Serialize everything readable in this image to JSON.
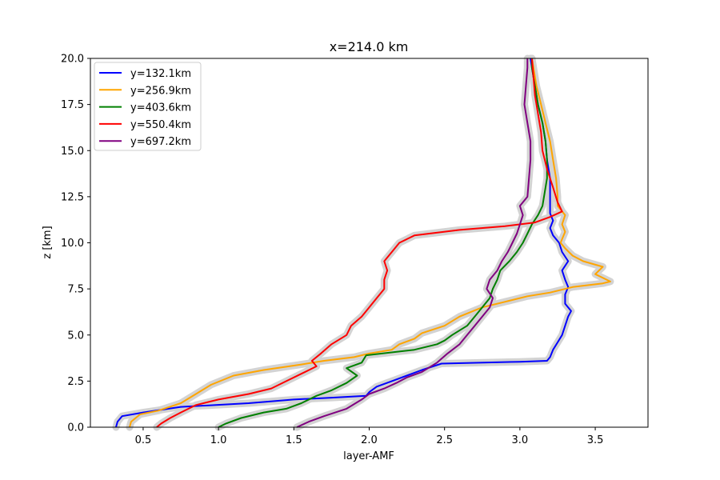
{
  "chart_data": {
    "type": "line",
    "title": "x=214.0 km",
    "xlabel": "layer-AMF",
    "ylabel": "z [km]",
    "xlim": [
      0.15,
      3.85
    ],
    "ylim": [
      0,
      20
    ],
    "xticks": [
      "0.5",
      "1.0",
      "1.5",
      "2.0",
      "2.5",
      "3.0",
      "3.5"
    ],
    "xtick_values": [
      0.5,
      1.0,
      1.5,
      2.0,
      2.5,
      3.0,
      3.5
    ],
    "yticks": [
      "0.0",
      "2.5",
      "5.0",
      "7.5",
      "10.0",
      "12.5",
      "15.0",
      "17.5",
      "20.0"
    ],
    "ytick_values": [
      0,
      2.5,
      5,
      7.5,
      10,
      12.5,
      15,
      17.5,
      20
    ],
    "grid": false,
    "legend_position": "top-left",
    "uncertainty_band_color": "#d3d3d3",
    "series": [
      {
        "name": "y=132.1km",
        "color": "#0000ff",
        "points": [
          [
            0.32,
            0
          ],
          [
            0.33,
            0.3
          ],
          [
            0.36,
            0.6
          ],
          [
            0.5,
            0.8
          ],
          [
            0.75,
            1.1
          ],
          [
            1.2,
            1.3
          ],
          [
            1.5,
            1.5
          ],
          [
            1.75,
            1.6
          ],
          [
            1.98,
            1.7
          ],
          [
            2.0,
            1.9
          ],
          [
            2.05,
            2.2
          ],
          [
            2.15,
            2.5
          ],
          [
            2.25,
            2.8
          ],
          [
            2.35,
            3.1
          ],
          [
            2.48,
            3.45
          ],
          [
            3.0,
            3.55
          ],
          [
            3.18,
            3.6
          ],
          [
            3.2,
            3.8
          ],
          [
            3.22,
            4.2
          ],
          [
            3.25,
            4.6
          ],
          [
            3.28,
            5.0
          ],
          [
            3.3,
            5.5
          ],
          [
            3.32,
            6.0
          ],
          [
            3.34,
            6.3
          ],
          [
            3.3,
            6.7
          ],
          [
            3.3,
            7.2
          ],
          [
            3.32,
            7.6
          ],
          [
            3.3,
            8.0
          ],
          [
            3.28,
            8.5
          ],
          [
            3.32,
            9.0
          ],
          [
            3.28,
            9.5
          ],
          [
            3.26,
            10.0
          ],
          [
            3.22,
            10.4
          ],
          [
            3.2,
            10.8
          ],
          [
            3.22,
            11.2
          ],
          [
            3.2,
            11.6
          ],
          [
            3.2,
            12.5
          ],
          [
            3.2,
            13.5
          ],
          [
            3.18,
            14.5
          ],
          [
            3.17,
            15.5
          ],
          [
            3.15,
            16.5
          ],
          [
            3.12,
            17.5
          ],
          [
            3.1,
            18.5
          ],
          [
            3.08,
            19.5
          ],
          [
            3.07,
            20.0
          ]
        ]
      },
      {
        "name": "y=256.9km",
        "color": "#ffa500",
        "points": [
          [
            0.41,
            0
          ],
          [
            0.42,
            0.3
          ],
          [
            0.48,
            0.7
          ],
          [
            0.6,
            0.9
          ],
          [
            0.75,
            1.3
          ],
          [
            0.85,
            1.8
          ],
          [
            0.95,
            2.3
          ],
          [
            1.1,
            2.8
          ],
          [
            1.3,
            3.1
          ],
          [
            1.55,
            3.4
          ],
          [
            1.7,
            3.6
          ],
          [
            1.9,
            3.8
          ],
          [
            2.0,
            4.0
          ],
          [
            2.15,
            4.2
          ],
          [
            2.2,
            4.5
          ],
          [
            2.3,
            4.8
          ],
          [
            2.35,
            5.1
          ],
          [
            2.5,
            5.5
          ],
          [
            2.6,
            6.0
          ],
          [
            2.75,
            6.5
          ],
          [
            2.9,
            6.8
          ],
          [
            3.05,
            7.1
          ],
          [
            3.2,
            7.3
          ],
          [
            3.35,
            7.6
          ],
          [
            3.55,
            7.8
          ],
          [
            3.6,
            7.9
          ],
          [
            3.5,
            8.3
          ],
          [
            3.55,
            8.7
          ],
          [
            3.42,
            9.0
          ],
          [
            3.35,
            9.3
          ],
          [
            3.3,
            9.7
          ],
          [
            3.27,
            10.0
          ],
          [
            3.3,
            10.6
          ],
          [
            3.28,
            11.0
          ],
          [
            3.3,
            11.5
          ],
          [
            3.25,
            12.0
          ],
          [
            3.25,
            12.5
          ],
          [
            3.24,
            13.5
          ],
          [
            3.22,
            14.5
          ],
          [
            3.2,
            15.5
          ],
          [
            3.17,
            16.5
          ],
          [
            3.14,
            17.5
          ],
          [
            3.11,
            18.5
          ],
          [
            3.09,
            19.5
          ],
          [
            3.08,
            20.0
          ]
        ]
      },
      {
        "name": "y=403.6km",
        "color": "#008000",
        "points": [
          [
            1.0,
            0
          ],
          [
            1.05,
            0.2
          ],
          [
            1.15,
            0.5
          ],
          [
            1.3,
            0.8
          ],
          [
            1.45,
            1.0
          ],
          [
            1.55,
            1.3
          ],
          [
            1.65,
            1.7
          ],
          [
            1.75,
            2.0
          ],
          [
            1.85,
            2.4
          ],
          [
            1.92,
            2.8
          ],
          [
            1.85,
            3.2
          ],
          [
            1.95,
            3.5
          ],
          [
            1.98,
            3.9
          ],
          [
            2.3,
            4.2
          ],
          [
            2.45,
            4.5
          ],
          [
            2.5,
            4.7
          ],
          [
            2.55,
            5.0
          ],
          [
            2.65,
            5.5
          ],
          [
            2.7,
            6.0
          ],
          [
            2.75,
            6.5
          ],
          [
            2.8,
            7.0
          ],
          [
            2.82,
            7.5
          ],
          [
            2.85,
            8.0
          ],
          [
            2.87,
            8.5
          ],
          [
            2.93,
            9.0
          ],
          [
            2.98,
            9.5
          ],
          [
            3.02,
            10.0
          ],
          [
            3.05,
            10.5
          ],
          [
            3.08,
            11.0
          ],
          [
            3.12,
            11.5
          ],
          [
            3.15,
            12.0
          ],
          [
            3.16,
            12.5
          ],
          [
            3.18,
            13.5
          ],
          [
            3.18,
            14.5
          ],
          [
            3.17,
            15.5
          ],
          [
            3.15,
            16.5
          ],
          [
            3.12,
            17.5
          ],
          [
            3.1,
            18.5
          ],
          [
            3.08,
            19.5
          ],
          [
            3.08,
            20.0
          ]
        ]
      },
      {
        "name": "y=550.4km",
        "color": "#ff0000",
        "points": [
          [
            0.59,
            0
          ],
          [
            0.62,
            0.2
          ],
          [
            0.68,
            0.5
          ],
          [
            0.75,
            0.8
          ],
          [
            0.85,
            1.2
          ],
          [
            1.0,
            1.5
          ],
          [
            1.2,
            1.8
          ],
          [
            1.35,
            2.1
          ],
          [
            1.45,
            2.5
          ],
          [
            1.55,
            2.9
          ],
          [
            1.65,
            3.3
          ],
          [
            1.62,
            3.6
          ],
          [
            1.68,
            4.0
          ],
          [
            1.75,
            4.5
          ],
          [
            1.85,
            5.0
          ],
          [
            1.88,
            5.5
          ],
          [
            1.95,
            6.0
          ],
          [
            2.0,
            6.5
          ],
          [
            2.05,
            7.0
          ],
          [
            2.1,
            7.5
          ],
          [
            2.1,
            8.0
          ],
          [
            2.12,
            8.5
          ],
          [
            2.1,
            9.0
          ],
          [
            2.15,
            9.5
          ],
          [
            2.2,
            10.0
          ],
          [
            2.3,
            10.4
          ],
          [
            2.6,
            10.7
          ],
          [
            2.9,
            10.9
          ],
          [
            3.1,
            11.1
          ],
          [
            3.2,
            11.4
          ],
          [
            3.28,
            11.7
          ],
          [
            3.25,
            12.2
          ],
          [
            3.22,
            13.0
          ],
          [
            3.18,
            14.0
          ],
          [
            3.15,
            15.0
          ],
          [
            3.14,
            16.0
          ],
          [
            3.12,
            17.0
          ],
          [
            3.1,
            18.0
          ],
          [
            3.09,
            19.0
          ],
          [
            3.08,
            20.0
          ]
        ]
      },
      {
        "name": "y=697.2km",
        "color": "#800080",
        "points": [
          [
            1.52,
            0
          ],
          [
            1.6,
            0.3
          ],
          [
            1.7,
            0.6
          ],
          [
            1.85,
            1.0
          ],
          [
            1.95,
            1.5
          ],
          [
            2.0,
            1.8
          ],
          [
            2.1,
            2.1
          ],
          [
            2.18,
            2.4
          ],
          [
            2.25,
            2.7
          ],
          [
            2.35,
            3.0
          ],
          [
            2.45,
            3.5
          ],
          [
            2.52,
            4.0
          ],
          [
            2.6,
            4.5
          ],
          [
            2.65,
            5.0
          ],
          [
            2.7,
            5.5
          ],
          [
            2.75,
            6.0
          ],
          [
            2.8,
            6.5
          ],
          [
            2.82,
            7.0
          ],
          [
            2.78,
            7.5
          ],
          [
            2.8,
            8.0
          ],
          [
            2.85,
            8.5
          ],
          [
            2.88,
            9.0
          ],
          [
            2.92,
            9.5
          ],
          [
            2.95,
            10.0
          ],
          [
            2.98,
            10.5
          ],
          [
            3.0,
            11.0
          ],
          [
            3.02,
            11.5
          ],
          [
            3.0,
            12.0
          ],
          [
            3.05,
            12.5
          ],
          [
            3.06,
            13.5
          ],
          [
            3.07,
            14.5
          ],
          [
            3.07,
            15.5
          ],
          [
            3.05,
            16.5
          ],
          [
            3.03,
            17.5
          ],
          [
            3.04,
            18.5
          ],
          [
            3.05,
            19.5
          ],
          [
            3.05,
            20.0
          ]
        ]
      }
    ]
  }
}
